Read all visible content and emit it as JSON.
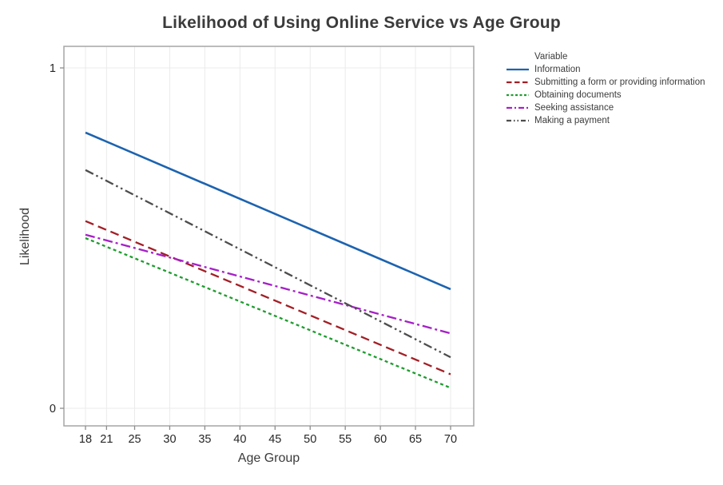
{
  "chart": {
    "title": "Likelihood of Using Online Service vs Age Group"
  },
  "chart_data": {
    "type": "line",
    "title": "Likelihood of Using Online Service vs Age Group",
    "xlabel": "Age Group",
    "ylabel": "Likelihood",
    "x_ticks": [
      18,
      21,
      25,
      30,
      35,
      40,
      45,
      50,
      55,
      60,
      65,
      70
    ],
    "y_ticks": [
      0,
      1
    ],
    "xlim": [
      18,
      70
    ],
    "ylim": [
      0,
      1
    ],
    "grid": true,
    "legend_position": "right",
    "legend_title": "Variable",
    "series": [
      {
        "name": "Information",
        "color": "#1c63b0",
        "dash": "solid",
        "x": [
          18,
          70
        ],
        "y": [
          0.81,
          0.35
        ]
      },
      {
        "name": "Submitting a form or providing information",
        "color": "#a21f26",
        "dash": "dashed",
        "x": [
          18,
          70
        ],
        "y": [
          0.55,
          0.1
        ]
      },
      {
        "name": "Obtaining documents",
        "color": "#1f9c2f",
        "dash": "short-dash",
        "x": [
          18,
          70
        ],
        "y": [
          0.5,
          0.06
        ]
      },
      {
        "name": "Seeking assistance",
        "color": "#a520c6",
        "dash": "dash-dot",
        "x": [
          18,
          70
        ],
        "y": [
          0.51,
          0.22
        ]
      },
      {
        "name": "Making a payment",
        "color": "#4d4d4d",
        "dash": "dash-dot-dot",
        "x": [
          18,
          70
        ],
        "y": [
          0.7,
          0.15
        ]
      }
    ],
    "colors": {
      "plot_border": "#a6a6a6",
      "grid_line": "#ebebeb",
      "tick_mark": "#8c8c8c",
      "tick_label": "#262626",
      "text": "#3b3b3b"
    }
  }
}
